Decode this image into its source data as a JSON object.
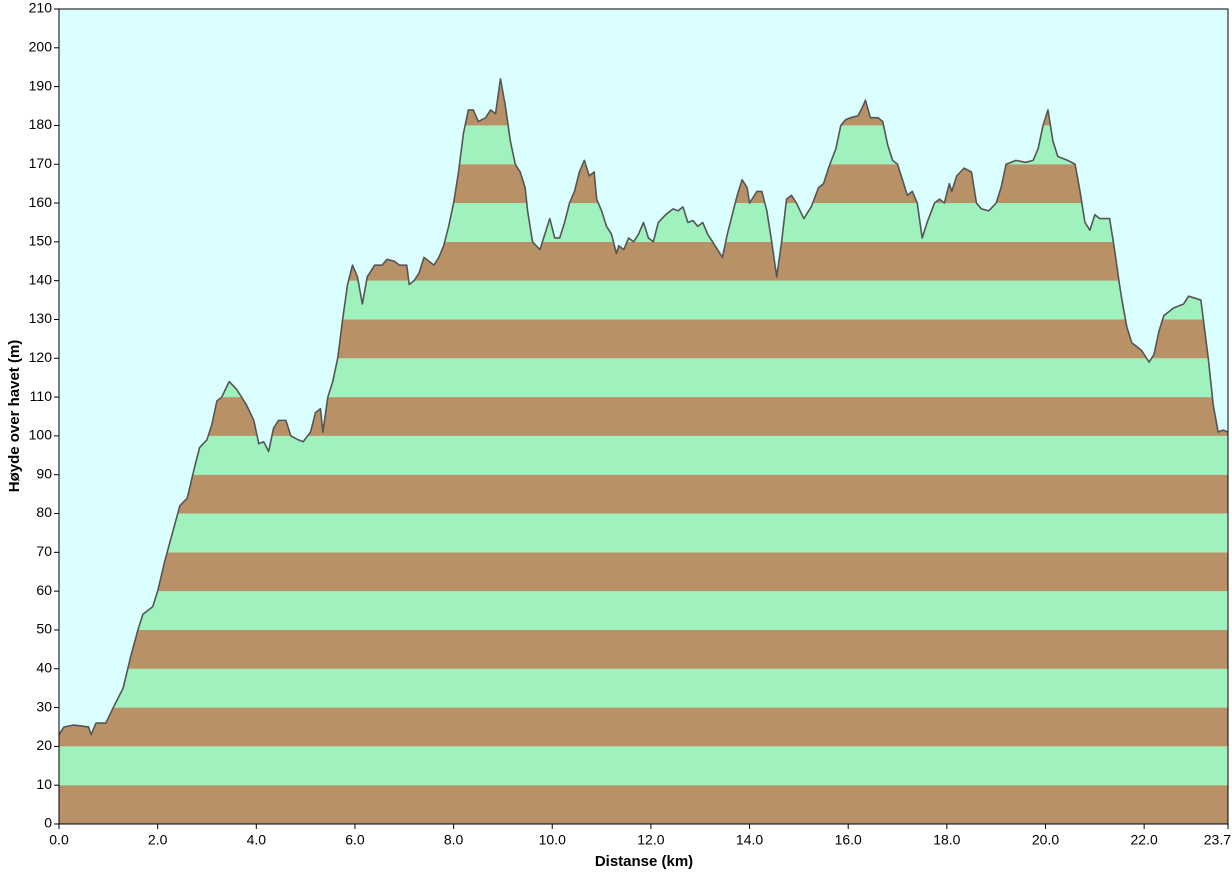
{
  "chart_data": {
    "type": "area",
    "x_label": "Distanse   (km)",
    "y_label": "Høyde over havet (m)",
    "background": "#dbffff",
    "line_color": "#555555",
    "band_colors": [
      "#b89166",
      "#9ff2bd"
    ],
    "xlim": [
      0,
      23.7
    ],
    "ylim": [
      0,
      210
    ],
    "xticks": [
      {
        "value": 0,
        "label": "0.0"
      },
      {
        "value": 2,
        "label": "2.0"
      },
      {
        "value": 4,
        "label": "4.0"
      },
      {
        "value": 6,
        "label": "6.0"
      },
      {
        "value": 8,
        "label": "8.0"
      },
      {
        "value": 10,
        "label": "10.0"
      },
      {
        "value": 12,
        "label": "12.0"
      },
      {
        "value": 14,
        "label": "14.0"
      },
      {
        "value": 16,
        "label": "16.0"
      },
      {
        "value": 18,
        "label": "18.0"
      },
      {
        "value": 20,
        "label": "20.0"
      },
      {
        "value": 22,
        "label": "22.0"
      },
      {
        "value": 23.7,
        "label": "23.7"
      }
    ],
    "yticks": [
      0,
      10,
      20,
      30,
      40,
      50,
      60,
      70,
      80,
      90,
      100,
      110,
      120,
      130,
      140,
      150,
      160,
      170,
      180,
      190,
      200,
      210
    ],
    "x": [
      0.0,
      0.1,
      0.3,
      0.6,
      0.65,
      0.75,
      0.95,
      1.1,
      1.3,
      1.45,
      1.6,
      1.7,
      1.9,
      2.0,
      2.15,
      2.3,
      2.45,
      2.6,
      2.75,
      2.85,
      3.0,
      3.1,
      3.2,
      3.3,
      3.45,
      3.6,
      3.8,
      3.95,
      4.05,
      4.15,
      4.25,
      4.35,
      4.45,
      4.6,
      4.7,
      4.85,
      4.95,
      5.1,
      5.2,
      5.3,
      5.35,
      5.45,
      5.55,
      5.65,
      5.75,
      5.85,
      5.95,
      6.05,
      6.15,
      6.25,
      6.4,
      6.55,
      6.65,
      6.8,
      6.9,
      7.05,
      7.1,
      7.2,
      7.3,
      7.4,
      7.5,
      7.6,
      7.7,
      7.8,
      7.9,
      8.0,
      8.1,
      8.2,
      8.3,
      8.4,
      8.5,
      8.65,
      8.75,
      8.85,
      8.95,
      9.05,
      9.15,
      9.25,
      9.35,
      9.45,
      9.5,
      9.6,
      9.75,
      9.85,
      9.95,
      10.05,
      10.15,
      10.25,
      10.35,
      10.45,
      10.55,
      10.65,
      10.75,
      10.85,
      10.9,
      11.0,
      11.1,
      11.2,
      11.3,
      11.35,
      11.45,
      11.55,
      11.65,
      11.75,
      11.85,
      11.95,
      12.05,
      12.15,
      12.3,
      12.45,
      12.55,
      12.65,
      12.75,
      12.85,
      12.95,
      13.05,
      13.15,
      13.3,
      13.45,
      13.55,
      13.65,
      13.75,
      13.85,
      13.95,
      14.0,
      14.15,
      14.25,
      14.35,
      14.45,
      14.55,
      14.65,
      14.75,
      14.85,
      14.95,
      15.1,
      15.25,
      15.4,
      15.5,
      15.6,
      15.75,
      15.85,
      15.95,
      16.05,
      16.2,
      16.3,
      16.35,
      16.45,
      16.6,
      16.7,
      16.8,
      16.9,
      17.0,
      17.1,
      17.2,
      17.3,
      17.4,
      17.5,
      17.6,
      17.75,
      17.85,
      17.95,
      18.05,
      18.1,
      18.2,
      18.35,
      18.5,
      18.6,
      18.7,
      18.85,
      19.0,
      19.1,
      19.2,
      19.4,
      19.6,
      19.75,
      19.85,
      19.95,
      20.05,
      20.15,
      20.25,
      20.45,
      20.6,
      20.7,
      20.8,
      20.9,
      21.0,
      21.1,
      21.3,
      21.4,
      21.5,
      21.55,
      21.65,
      21.75,
      21.95,
      22.1,
      22.2,
      22.3,
      22.4,
      22.6,
      22.8,
      22.9,
      23.15,
      23.2,
      23.3,
      23.4,
      23.5,
      23.6,
      23.7
    ],
    "values": [
      23,
      25,
      25.5,
      25,
      23,
      26,
      26,
      30,
      35,
      43,
      50,
      54,
      56,
      60,
      68,
      75,
      82,
      84,
      92,
      97,
      99,
      103,
      109,
      110,
      114,
      112,
      108,
      104,
      98,
      98.5,
      96,
      102,
      104,
      104,
      100,
      99,
      98.5,
      101,
      106,
      107,
      101,
      110,
      114,
      120,
      130,
      139,
      144,
      141,
      134,
      141,
      144,
      144,
      145.5,
      145,
      144,
      144,
      139,
      140,
      142,
      146,
      145,
      144,
      146,
      149,
      154,
      160,
      168,
      178,
      184,
      184,
      181,
      182,
      184,
      183,
      192,
      185,
      176,
      170,
      168,
      164,
      158,
      150,
      148,
      152,
      156,
      151,
      151,
      155,
      160,
      163,
      168,
      171,
      167,
      168,
      161,
      158,
      154,
      152,
      147,
      149,
      148,
      151,
      150,
      152,
      155,
      151,
      150,
      155,
      157,
      158.5,
      158,
      159,
      155,
      155.5,
      154,
      155,
      152,
      149,
      146,
      152,
      157,
      162,
      166,
      164,
      160,
      163,
      163,
      158,
      150,
      141,
      150,
      161,
      162,
      160,
      156,
      159,
      164,
      165,
      169,
      174,
      180,
      181.5,
      182,
      182.5,
      185,
      186.5,
      182,
      182,
      181,
      175,
      171,
      170,
      166,
      162,
      163,
      160,
      151,
      155,
      160,
      161,
      160,
      165,
      163,
      167,
      169,
      168,
      160,
      158.5,
      158,
      160,
      164,
      170,
      171,
      170.5,
      171,
      174,
      180,
      184,
      176,
      172,
      171,
      170,
      163,
      155,
      153,
      157,
      156,
      156,
      148,
      139,
      135,
      128,
      124,
      122,
      119,
      121,
      127,
      131,
      133,
      134,
      136,
      135,
      130,
      120,
      108,
      101,
      101.5,
      101
    ]
  }
}
